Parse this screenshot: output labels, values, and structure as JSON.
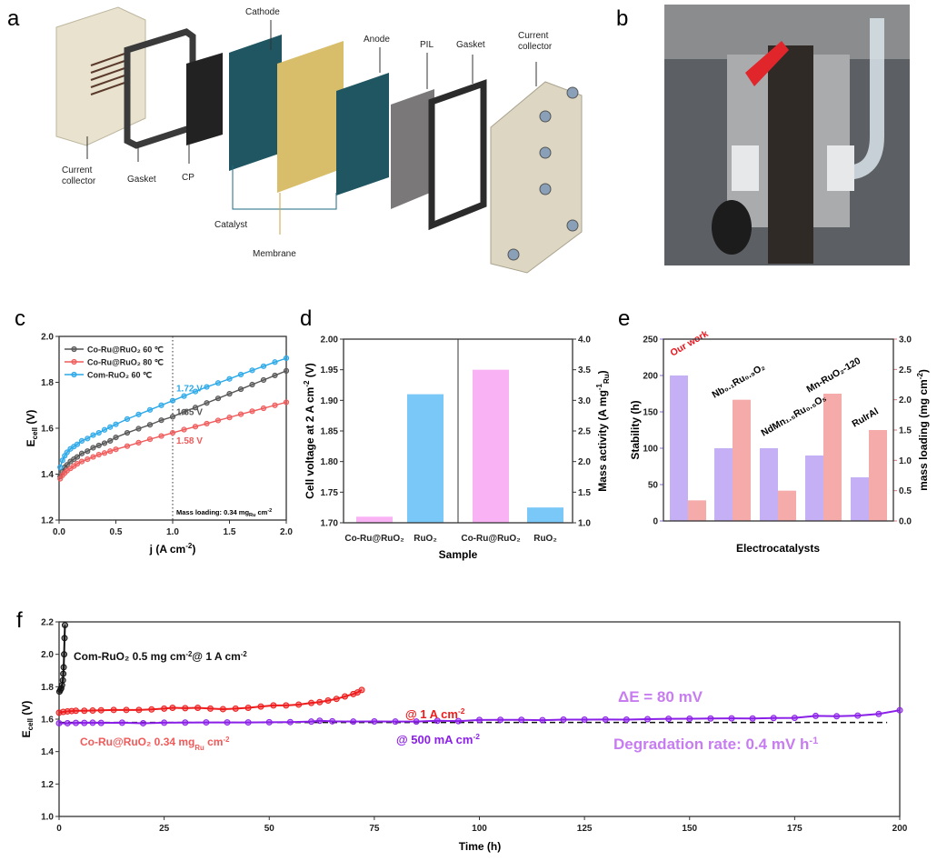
{
  "panels": {
    "a": "a",
    "b": "b",
    "c": "c",
    "d": "d",
    "e": "e",
    "f": "f"
  },
  "diagram_a": {
    "labels": [
      "Current",
      "collector",
      "Gasket",
      "CP",
      "Cathode",
      "Catalyst",
      "Membrane",
      "Anode",
      "PIL",
      "Gasket",
      "Current",
      "collector"
    ],
    "colors": {
      "plate": "#e8e2cf",
      "gasket": "#2b2b2b",
      "cp": "#222222",
      "electrode": "#1f5661",
      "membrane": "#d8bd6a",
      "pil": "#7a7878",
      "catalyst_line": "#1c6a86",
      "membrane_line": "#c8a54a"
    }
  },
  "photo_b": {
    "description_icon": "photo-electrolyzer-cell"
  },
  "chart_data": [
    {
      "id": "c",
      "type": "line",
      "xlabel": "j (A cm",
      "xlabel_sup": "-2",
      "xlabel_end": ")",
      "ylabel": "E",
      "ylabel_sub": "cell",
      "ylabel_end": " (V)",
      "xlim": [
        0,
        2.0
      ],
      "ylim": [
        1.2,
        2.0
      ],
      "xticks": [
        "0.0",
        "0.5",
        "1.0",
        "1.5",
        "2.0"
      ],
      "yticks": [
        "1.2",
        "1.4",
        "1.6",
        "1.8",
        "2.0"
      ],
      "vline_x": 1.0,
      "annotation": {
        "text": "Mass loading: 0.34 mg",
        "sub": "Ru",
        "end": " cm",
        "sup": "-2"
      },
      "series": [
        {
          "name": "Co-Ru@RuO₂  60 ℃",
          "color": "#555555",
          "label": "1.65 V",
          "x": [
            0.01,
            0.03,
            0.05,
            0.07,
            0.1,
            0.13,
            0.16,
            0.2,
            0.25,
            0.3,
            0.35,
            0.4,
            0.45,
            0.5,
            0.6,
            0.7,
            0.8,
            0.9,
            1.0,
            1.1,
            1.2,
            1.3,
            1.4,
            1.5,
            1.6,
            1.7,
            1.8,
            1.9,
            2.0
          ],
          "y": [
            1.39,
            1.41,
            1.43,
            1.44,
            1.455,
            1.465,
            1.475,
            1.49,
            1.5,
            1.515,
            1.525,
            1.535,
            1.545,
            1.56,
            1.58,
            1.598,
            1.615,
            1.635,
            1.65,
            1.672,
            1.69,
            1.71,
            1.73,
            1.75,
            1.77,
            1.79,
            1.81,
            1.83,
            1.85
          ]
        },
        {
          "name": "Co-Ru@RuO₂  80 ℃",
          "color": "#f05a5a",
          "label": "1.58 V",
          "x": [
            0.01,
            0.03,
            0.05,
            0.07,
            0.1,
            0.13,
            0.16,
            0.2,
            0.25,
            0.3,
            0.35,
            0.4,
            0.45,
            0.5,
            0.6,
            0.7,
            0.8,
            0.9,
            1.0,
            1.1,
            1.2,
            1.3,
            1.4,
            1.5,
            1.6,
            1.7,
            1.8,
            1.9,
            2.0
          ],
          "y": [
            1.38,
            1.395,
            1.405,
            1.415,
            1.425,
            1.435,
            1.445,
            1.455,
            1.465,
            1.475,
            1.485,
            1.492,
            1.5,
            1.508,
            1.522,
            1.537,
            1.552,
            1.566,
            1.58,
            1.594,
            1.607,
            1.62,
            1.634,
            1.647,
            1.661,
            1.674,
            1.687,
            1.7,
            1.713
          ]
        },
        {
          "name": "Com-RuO₂ 60 ℃",
          "color": "#2aa8e8",
          "label": "1.72 V",
          "x": [
            0.01,
            0.03,
            0.05,
            0.07,
            0.1,
            0.13,
            0.16,
            0.2,
            0.25,
            0.3,
            0.35,
            0.4,
            0.45,
            0.5,
            0.6,
            0.7,
            0.8,
            0.9,
            1.0,
            1.1,
            1.2,
            1.3,
            1.4,
            1.5,
            1.6,
            1.7,
            1.8,
            1.9,
            2.0
          ],
          "y": [
            1.43,
            1.46,
            1.48,
            1.495,
            1.51,
            1.52,
            1.53,
            1.545,
            1.555,
            1.57,
            1.58,
            1.593,
            1.605,
            1.617,
            1.64,
            1.66,
            1.68,
            1.7,
            1.72,
            1.74,
            1.76,
            1.78,
            1.797,
            1.815,
            1.834,
            1.852,
            1.87,
            1.888,
            1.905
          ]
        }
      ],
      "legend": "top-left"
    },
    {
      "id": "d",
      "type": "bar",
      "xlabel": "Sample",
      "ylabel": "Cell voltage at 2 A cm",
      "ylabel_sup": "-2",
      "ylabel_end": " (V)",
      "y2label": "Mass activity (A mg",
      "y2label_sup": "-1",
      "y2label_sub": "Ru",
      "y2label_end": ")",
      "ylim": [
        1.7,
        2.0
      ],
      "y2lim": [
        1.0,
        4.0
      ],
      "yticks": [
        "1.70",
        "1.75",
        "1.80",
        "1.85",
        "1.90",
        "1.95",
        "2.00"
      ],
      "y2ticks": [
        "1.0",
        "1.5",
        "2.0",
        "2.5",
        "3.0",
        "3.5",
        "4.0"
      ],
      "categories": [
        "Co-Ru@RuO₂",
        "RuO₂",
        "Co-Ru@RuO₂",
        "RuO₂"
      ],
      "values": [
        1.71,
        1.91,
        3.5,
        1.25
      ],
      "axis": [
        "left",
        "left",
        "right",
        "right"
      ],
      "colors": [
        "#f9b3f5",
        "#79c8f7",
        "#f9b3f5",
        "#79c8f7"
      ]
    },
    {
      "id": "e",
      "type": "bar",
      "xlabel": "Electrocatalysts",
      "ylabel": "Stability (h)",
      "y2label": "mass loading (mg cm",
      "y2label_sup": "-2",
      "y2label_end": ")",
      "ylim": [
        0,
        250
      ],
      "y2lim": [
        0,
        3.0
      ],
      "yticks": [
        "0",
        "50",
        "100",
        "150",
        "200",
        "250"
      ],
      "y2ticks": [
        "0.0",
        "0.5",
        "1.0",
        "1.5",
        "2.0",
        "2.5",
        "3.0"
      ],
      "categories": [
        "Our work",
        "Nb₀.₁Ru₀.₉O₂",
        "NdMn₁.₅Ru₀.₅O₅",
        "Mn-RuO₂-120",
        "RuIrAl"
      ],
      "category_colors": [
        "#e8141c",
        "#000000",
        "#000000",
        "#000000",
        "#000000"
      ],
      "series": [
        {
          "name": "Stability",
          "axis": "left",
          "color": "#c6b0f5",
          "values": [
            200,
            100,
            100,
            90,
            60
          ]
        },
        {
          "name": "mass loading",
          "axis": "right",
          "color": "#f6abab",
          "values": [
            0.34,
            2.0,
            0.5,
            2.1,
            1.5
          ]
        }
      ],
      "axis_colors": {
        "left": "#8a6fd0",
        "right": "#d87a7a"
      }
    },
    {
      "id": "f",
      "type": "line",
      "xlabel": "Time (h)",
      "ylabel": "E",
      "ylabel_sub": "cell",
      "ylabel_end": " (V)",
      "xlim": [
        0,
        200
      ],
      "ylim": [
        1.0,
        2.2
      ],
      "xticks": [
        "0",
        "25",
        "50",
        "75",
        "100",
        "125",
        "150",
        "175",
        "200"
      ],
      "yticks": [
        "1.0",
        "1.2",
        "1.4",
        "1.6",
        "1.8",
        "2.0",
        "2.2"
      ],
      "baseline_y": 1.58,
      "series": [
        {
          "name": "Com-RuO₂",
          "color": "#111111",
          "x": [
            0.1,
            0.3,
            0.5,
            0.7,
            0.9,
            1.0,
            1.1,
            1.2,
            1.3,
            1.4
          ],
          "y": [
            1.77,
            1.78,
            1.79,
            1.81,
            1.84,
            1.88,
            1.92,
            2.0,
            2.1,
            2.18
          ]
        },
        {
          "name": "Co-Ru@RuO₂ @ 1 A",
          "color": "#ee1c1c",
          "x": [
            0,
            1,
            2,
            3,
            4,
            6,
            8,
            10,
            13,
            16,
            19,
            22,
            25,
            27,
            30,
            33,
            36,
            39,
            42,
            45,
            48,
            51,
            54,
            57,
            60,
            62,
            64,
            66,
            68,
            70,
            71,
            72
          ],
          "y": [
            1.64,
            1.645,
            1.648,
            1.65,
            1.652,
            1.652,
            1.653,
            1.655,
            1.657,
            1.657,
            1.657,
            1.66,
            1.665,
            1.67,
            1.668,
            1.67,
            1.665,
            1.662,
            1.665,
            1.67,
            1.678,
            1.685,
            1.685,
            1.69,
            1.7,
            1.705,
            1.715,
            1.725,
            1.74,
            1.755,
            1.765,
            1.78
          ]
        },
        {
          "name": "Co-Ru@RuO₂ @ 500 mA",
          "color": "#8a1fe8",
          "x": [
            0,
            2,
            4,
            6,
            8,
            10,
            15,
            20,
            25,
            30,
            35,
            40,
            45,
            50,
            55,
            60,
            62,
            65,
            70,
            75,
            80,
            85,
            90,
            95,
            100,
            105,
            110,
            115,
            120,
            125,
            130,
            135,
            140,
            145,
            150,
            155,
            160,
            165,
            170,
            175,
            180,
            185,
            190,
            195,
            200
          ],
          "y": [
            1.575,
            1.575,
            1.577,
            1.577,
            1.578,
            1.577,
            1.578,
            1.575,
            1.578,
            1.579,
            1.58,
            1.58,
            1.58,
            1.581,
            1.582,
            1.585,
            1.59,
            1.587,
            1.585,
            1.586,
            1.585,
            1.585,
            1.59,
            1.588,
            1.595,
            1.596,
            1.596,
            1.594,
            1.597,
            1.597,
            1.598,
            1.597,
            1.6,
            1.602,
            1.603,
            1.604,
            1.605,
            1.604,
            1.607,
            1.608,
            1.62,
            1.618,
            1.622,
            1.632,
            1.655
          ]
        }
      ],
      "annotations": [
        {
          "parts": [
            "Com-RuO₂  0.5 mg cm",
            "-2",
            "@ 1 A cm",
            "-2"
          ],
          "color": "#111111"
        },
        {
          "parts": [
            "@ 1 A cm",
            "-2"
          ],
          "color": "#ee1c1c"
        },
        {
          "parts": [
            "Co-Ru@RuO₂  0.34 mg",
            "Ru",
            " cm",
            "-2"
          ],
          "color": "#f05a5a"
        },
        {
          "parts": [
            "@ 500 mA cm",
            "-2"
          ],
          "color": "#8a1fe8"
        },
        {
          "parts": [
            "ΔE = 80 mV"
          ],
          "color": "#c77cf0"
        },
        {
          "parts": [
            "Degradation rate: 0.4 mV h",
            "-1"
          ],
          "color": "#c77cf0"
        }
      ]
    }
  ]
}
